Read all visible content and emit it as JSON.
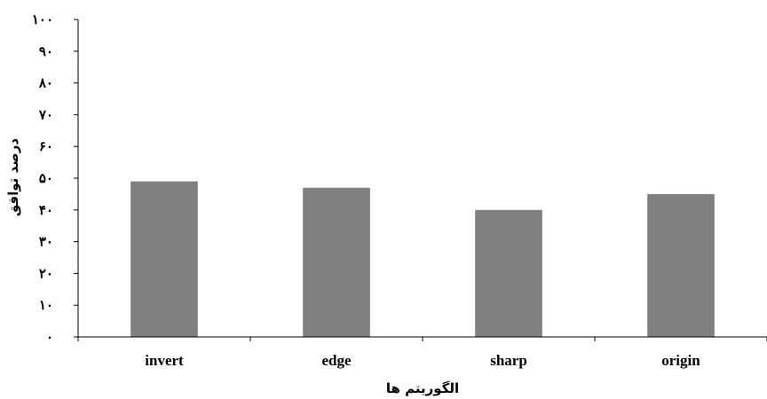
{
  "chart_data": {
    "type": "bar",
    "title": "",
    "xlabel": "الگوریتم ها",
    "ylabel": "درصد توافق",
    "categories": [
      "invert",
      "edge",
      "sharp",
      "origin"
    ],
    "values": [
      49,
      47,
      40,
      45
    ],
    "ylim": [
      0,
      100
    ],
    "ytick_values": [
      0,
      10,
      20,
      30,
      40,
      50,
      60,
      70,
      80,
      90,
      100
    ],
    "ytick_labels": [
      "۰",
      "۱۰",
      "۲۰",
      "۳۰",
      "۴۰",
      "۵۰",
      "۶۰",
      "۷۰",
      "۸۰",
      "۹۰",
      "۱۰۰"
    ],
    "bar_color": "#808080",
    "grid": false,
    "legend": "none"
  }
}
